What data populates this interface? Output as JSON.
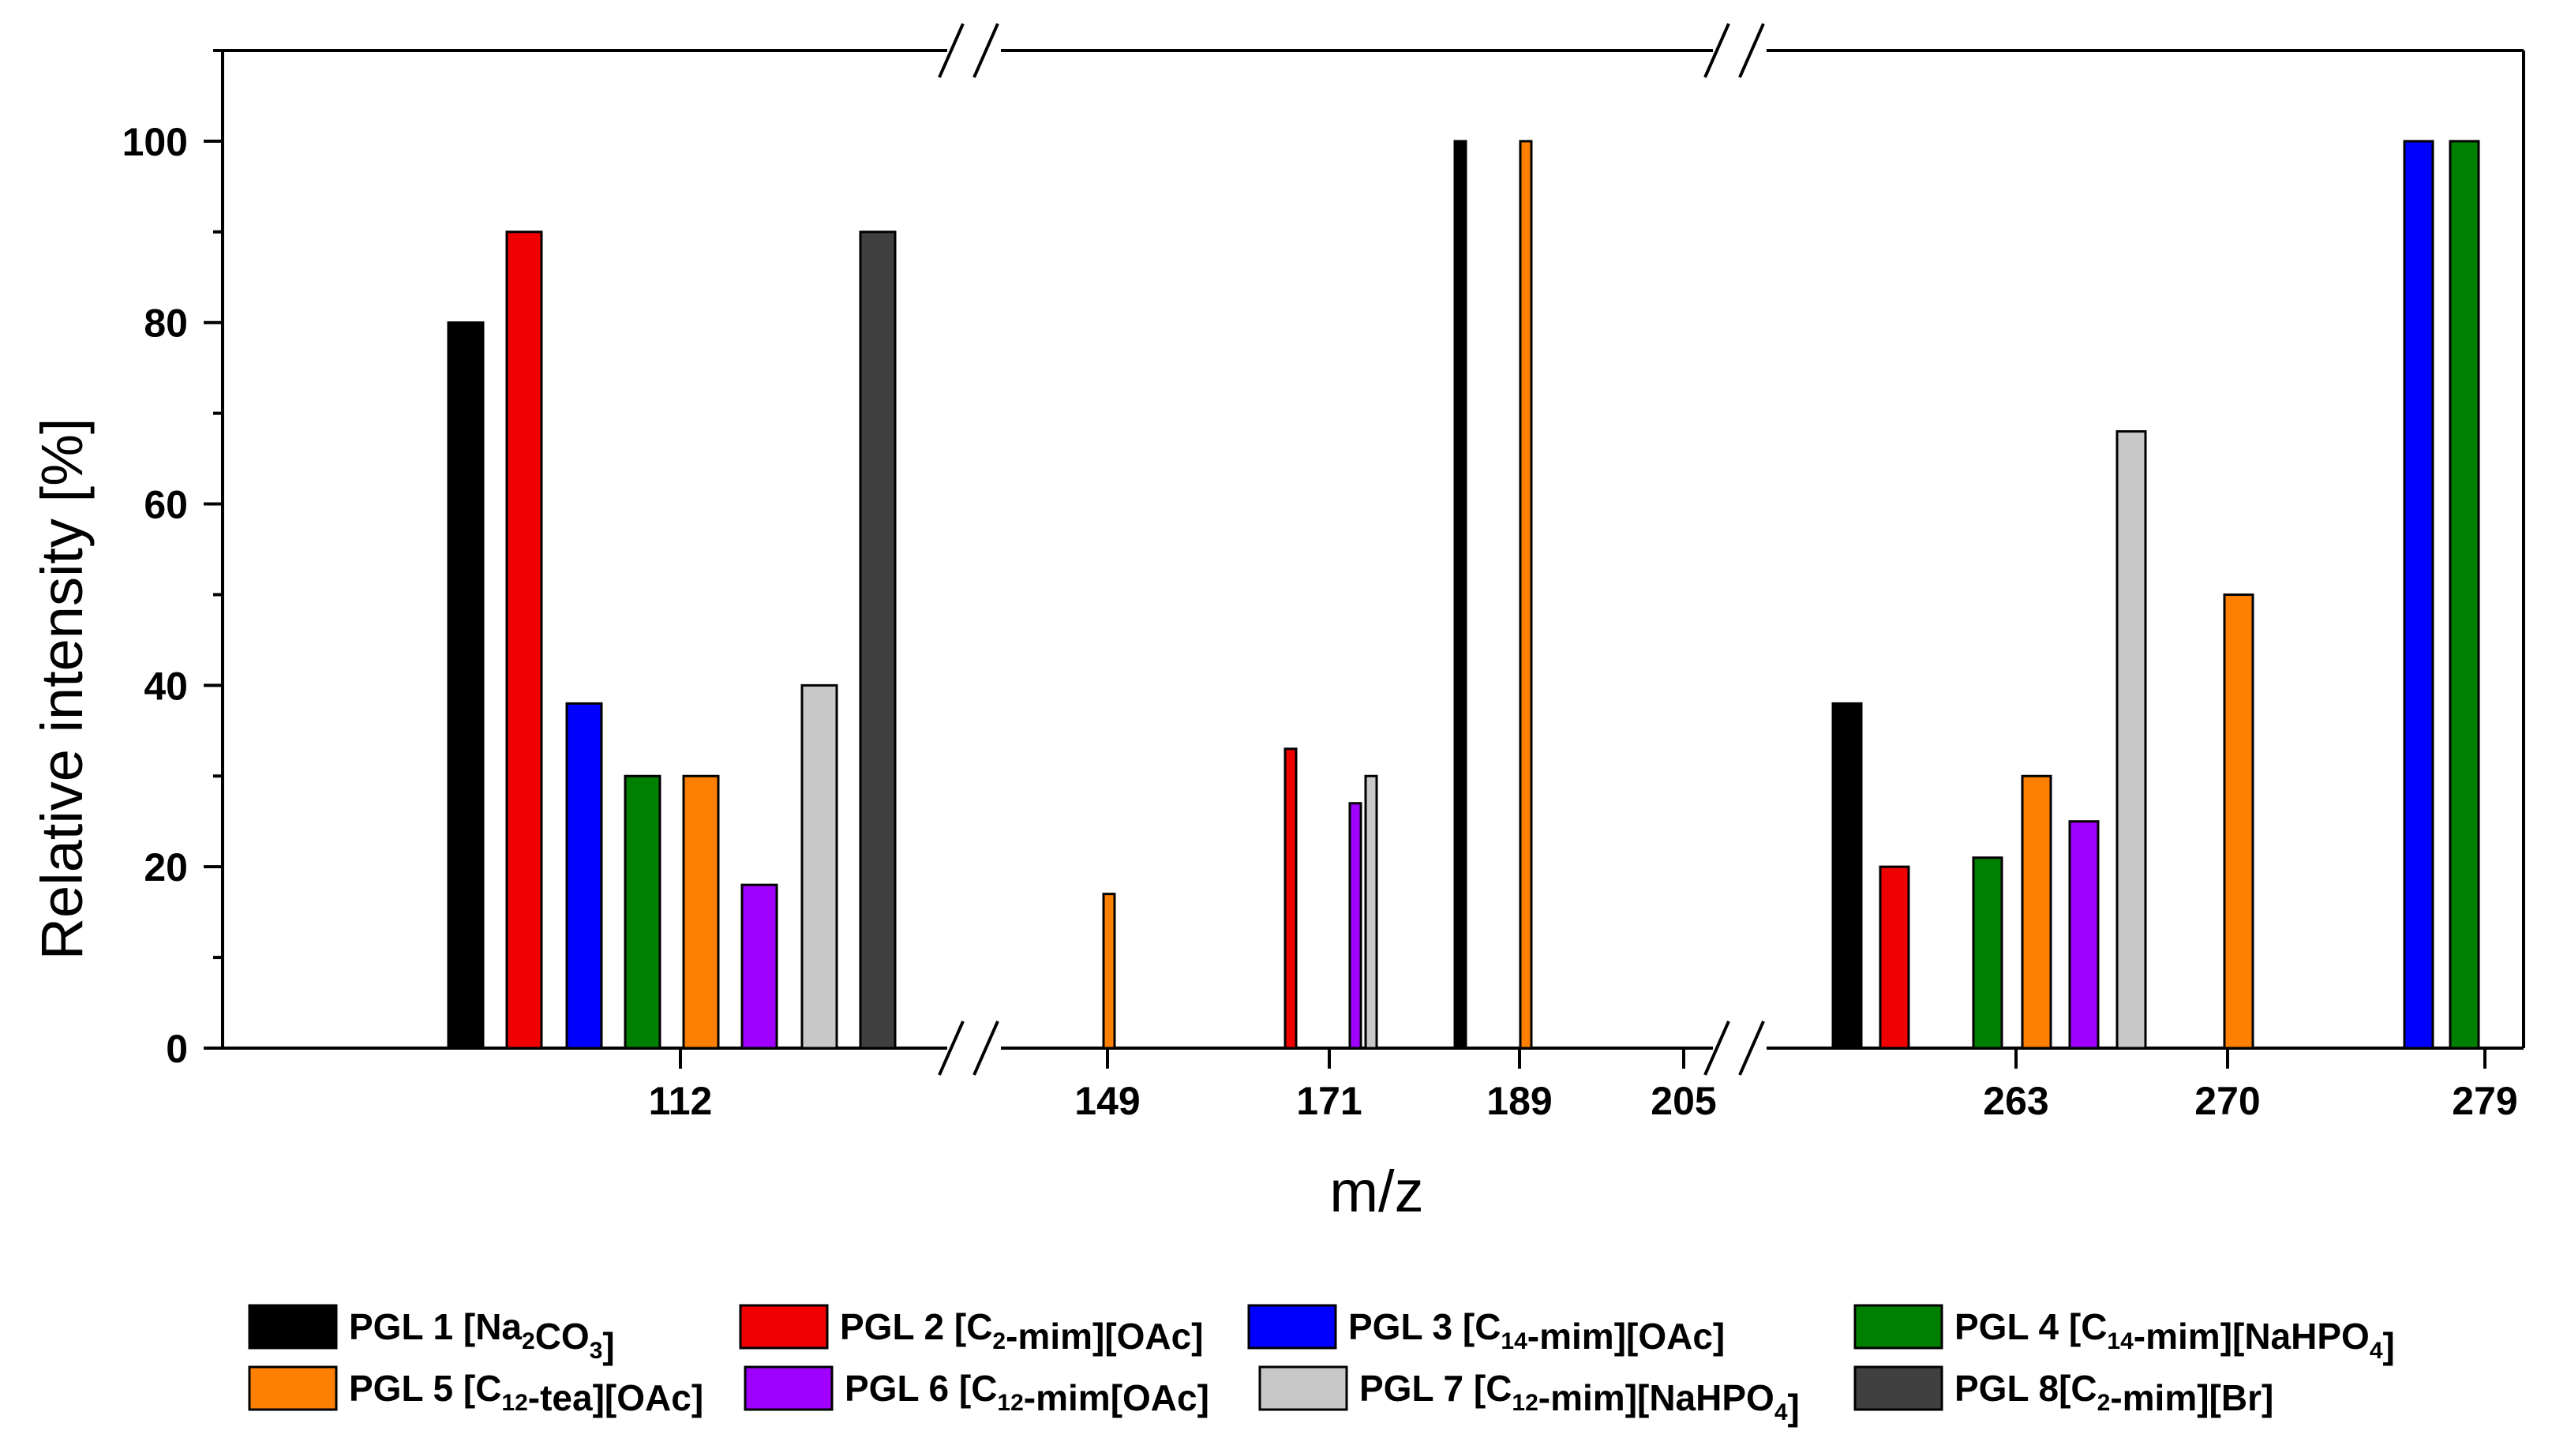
{
  "chart_data": {
    "type": "bar",
    "title": "",
    "xlabel": "m/z",
    "ylabel": "Relative intensity [%]",
    "ylim": [
      0,
      110
    ],
    "yticks": [
      0,
      20,
      40,
      60,
      80,
      100
    ],
    "x_axis_broken": true,
    "series": [
      {
        "name": "PGL 1 [Na2CO3]",
        "label_parts": [
          [
            "PGL 1 [Na",
            ""
          ],
          [
            "2",
            "sub"
          ],
          [
            "CO",
            ""
          ],
          [
            "3",
            "sub"
          ],
          [
            "]",
            ""
          ]
        ],
        "color": "#000000"
      },
      {
        "name": "PGL 2 [C2-mim][OAc]",
        "label_parts": [
          [
            "PGL 2 [C",
            ""
          ],
          [
            "2",
            "sub"
          ],
          [
            "-mim][OAc]",
            ""
          ]
        ],
        "color": "#f00000"
      },
      {
        "name": "PGL 3 [C14-mim][OAc]",
        "label_parts": [
          [
            "PGL 3 [C",
            ""
          ],
          [
            "14",
            "sub"
          ],
          [
            "-mim][OAc]",
            ""
          ]
        ],
        "color": "#0000ff"
      },
      {
        "name": "PGL 4 [C14-mim][NaHPO4]",
        "label_parts": [
          [
            "PGL 4 [C",
            ""
          ],
          [
            "14",
            "sub"
          ],
          [
            "-mim][NaHPO",
            ""
          ],
          [
            "4",
            "sub"
          ],
          [
            "]",
            ""
          ]
        ],
        "color": "#008000"
      },
      {
        "name": "PGL 5 [C12-tea][OAc]",
        "label_parts": [
          [
            "PGL 5 [C",
            ""
          ],
          [
            "12",
            "sub"
          ],
          [
            "-tea][OAc]",
            ""
          ]
        ],
        "color": "#ff8000"
      },
      {
        "name": "PGL 6 [C12-mim[OAc]",
        "label_parts": [
          [
            "PGL 6 [C",
            ""
          ],
          [
            "12",
            "sub"
          ],
          [
            "-mim[OAc]",
            ""
          ]
        ],
        "color": "#a000ff"
      },
      {
        "name": "PGL 7 [C12-mim][NaHPO4]",
        "label_parts": [
          [
            "PGL 7 [C",
            ""
          ],
          [
            "12",
            "sub"
          ],
          [
            "-mim][NaHPO",
            ""
          ],
          [
            "4",
            "sub"
          ],
          [
            "]",
            ""
          ]
        ],
        "color": "#c8c8c8"
      },
      {
        "name": "PGL 8[C2-mim][Br]",
        "label_parts": [
          [
            "PGL 8[C",
            ""
          ],
          [
            "2",
            "sub"
          ],
          [
            "-mim][Br]",
            ""
          ]
        ],
        "color": "#404040"
      }
    ],
    "groups": [
      {
        "mz": "112",
        "bars": [
          {
            "series": 0,
            "value": 80
          },
          {
            "series": 1,
            "value": 90
          },
          {
            "series": 2,
            "value": 38
          },
          {
            "series": 3,
            "value": 30
          },
          {
            "series": 4,
            "value": 30
          },
          {
            "series": 5,
            "value": 18
          },
          {
            "series": 6,
            "value": 40
          },
          {
            "series": 7,
            "value": 90
          }
        ]
      },
      {
        "mz": "149",
        "bars": [
          {
            "series": 4,
            "value": 17
          }
        ]
      },
      {
        "mz": "171",
        "bars": [
          {
            "series": 1,
            "value": 33
          },
          {
            "series": 5,
            "value": 27
          },
          {
            "series": 6,
            "value": 30
          }
        ]
      },
      {
        "mz": "189",
        "bars": [
          {
            "series": 0,
            "value": 100
          },
          {
            "series": 4,
            "value": 100
          }
        ]
      },
      {
        "mz": "205",
        "bars": []
      },
      {
        "mz": "263",
        "bars": [
          {
            "series": 0,
            "value": 38
          },
          {
            "series": 1,
            "value": 20
          },
          {
            "series": 3,
            "value": 21
          },
          {
            "series": 4,
            "value": 30
          },
          {
            "series": 5,
            "value": 25
          },
          {
            "series": 6,
            "value": 68
          }
        ]
      },
      {
        "mz": "270",
        "bars": [
          {
            "series": 4,
            "value": 50
          }
        ]
      },
      {
        "mz": "279",
        "bars": [
          {
            "series": 2,
            "value": 100
          },
          {
            "series": 3,
            "value": 100
          }
        ]
      }
    ]
  }
}
